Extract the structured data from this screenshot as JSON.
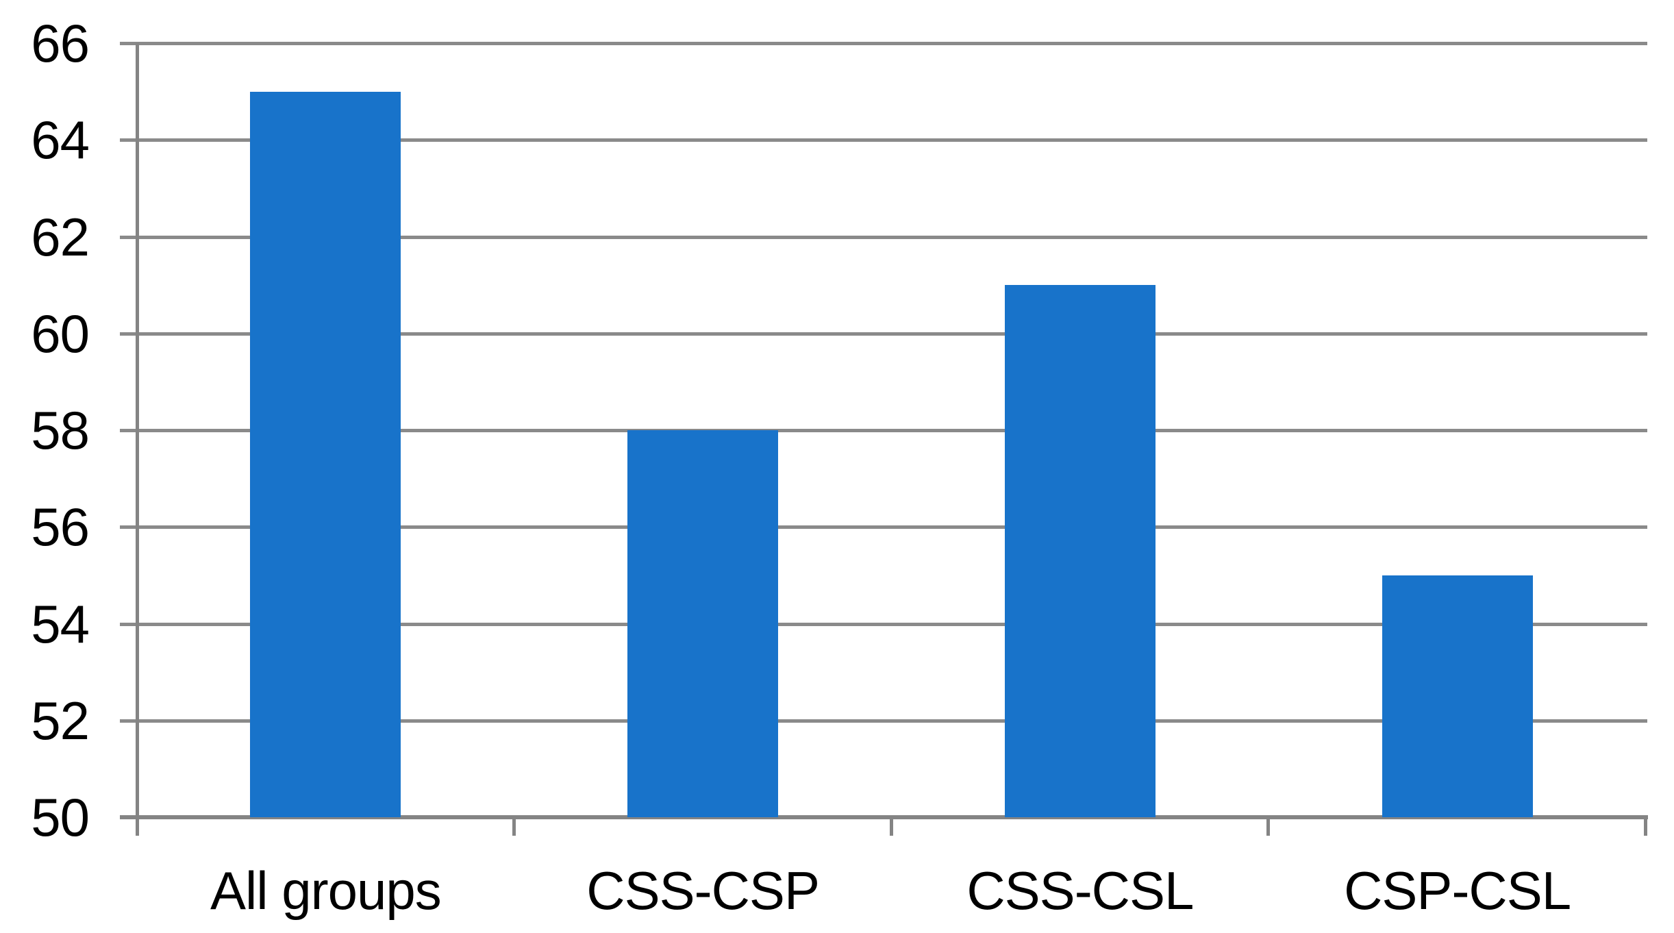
{
  "chart_data": {
    "type": "bar",
    "categories": [
      "All groups",
      "CSS-CSP",
      "CSS-CSL",
      "CSP-CSL"
    ],
    "values": [
      65,
      58,
      61,
      55
    ],
    "title": "",
    "xlabel": "",
    "ylabel": "",
    "ylim": [
      50,
      66
    ],
    "ytick_step": 2,
    "ytick_labels": [
      "50",
      "52",
      "54",
      "56",
      "58",
      "60",
      "62",
      "64",
      "66"
    ],
    "grid": "horizontal",
    "legend": "none",
    "bar_color": "#1873CA",
    "gridline_color": "#8A8A8A",
    "axis_color": "#848484",
    "text_color": "#000000",
    "background_color": "#ffffff"
  }
}
